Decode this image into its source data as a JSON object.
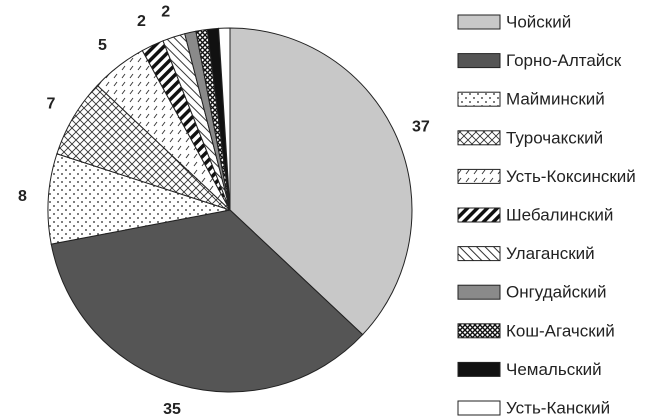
{
  "chart_data": {
    "type": "pie",
    "categories": [
      "Чойский",
      "Горно-Алтайск",
      "Майминский",
      "Турочакский",
      "Усть-Коксинский",
      "Шебалинский",
      "Улаганский",
      "Онгудайский",
      "Кош-Агачский",
      "Чемальский",
      "Усть-Канский"
    ],
    "values": [
      37,
      35,
      8,
      7,
      5,
      2,
      2,
      1,
      1,
      1,
      1
    ],
    "value_labels": [
      "37",
      "35",
      "8",
      "7",
      "5",
      "2",
      "2",
      null,
      null,
      null,
      null
    ],
    "colors": [
      "#c8c8c8",
      "#555555",
      "#ffffff",
      "#ffffff",
      "#ffffff",
      "#ffffff",
      "#ffffff",
      "#8a8a8a",
      "#ffffff",
      "#111111",
      "#ffffff"
    ],
    "legend": "right"
  }
}
